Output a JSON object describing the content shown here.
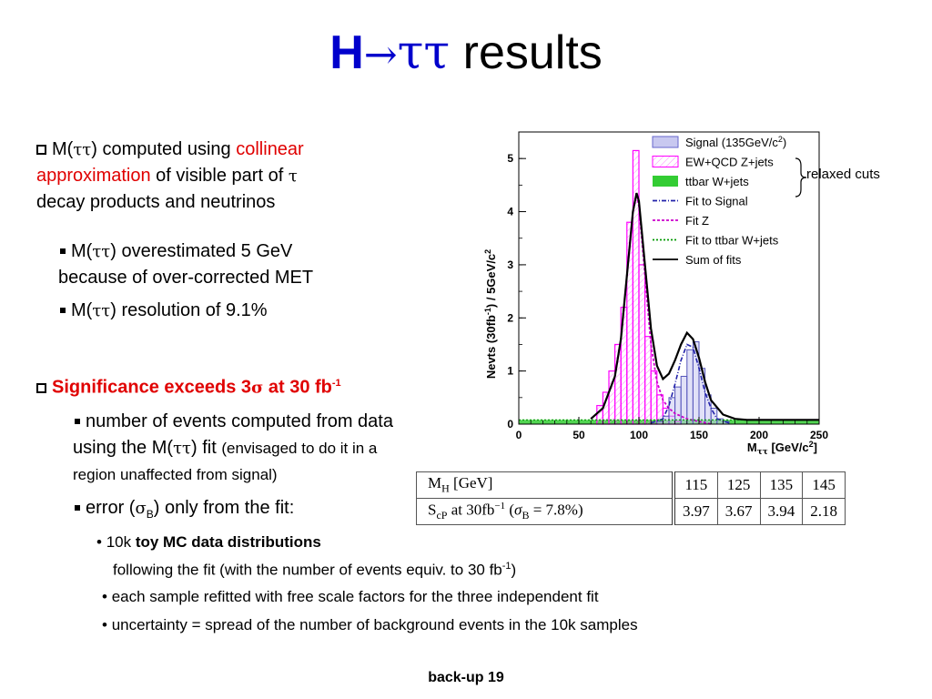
{
  "title": {
    "main_bold": "H",
    "arrow": "→",
    "taus": "ττ",
    "rest": " results"
  },
  "bullets": {
    "b1": {
      "l1_pre": "M(",
      "l1_tau": "ττ",
      "l1_mid": ") computed using ",
      "l1_red": "collinear",
      "l2_red": "approximation",
      "l2_mid": " of visible part of ",
      "l2_tau": "τ",
      "l3": "decay products and neutrinos"
    },
    "b1a": {
      "l1_pre": "M(",
      "l1_tau": "ττ",
      "l1_post": ") overestimated 5 GeV",
      "l2": "because of over-corrected MET"
    },
    "b1b": {
      "pre": "M(",
      "tau": "ττ",
      "post": ") resolution of 9.1%"
    },
    "b2": {
      "pre": "Significance exceeds 3",
      "sigma": "σ",
      "post": " at 30 fb",
      "sup": "-1"
    },
    "b2a": {
      "l1": "number of events computed from data",
      "l2_pre": "using the M(",
      "l2_tau": "ττ",
      "l2_post": ") fit ",
      "l2_small": "(envisaged to do it in a",
      "l3_small": "region unaffected from signal)"
    },
    "b2b": {
      "pre": "error (",
      "sigma": "σ",
      "sub": "B",
      "post": ") only from the fit:"
    },
    "b2c": {
      "l1_pre": "10k ",
      "l1_bold": "toy MC data distributions",
      "l2": "following the fit (with the number of events equiv. to 30 fb",
      "l2_sup": "-1",
      "l2_post": ")"
    },
    "b2d": "each sample refitted with free scale factors for the three independent fit",
    "b2e": "uncertainty = spread of the number of background events in the 10k samples"
  },
  "chart_data": {
    "type": "line",
    "ylabel_pre": "Nevts (30fb",
    "ylabel_sup": "-1",
    "ylabel_post": ") / 5GeV/c",
    "ylabel_sup2": "2",
    "xlabel_pre": "M",
    "xlabel_sub": "ττ",
    "xlabel_post": " [GeV/c",
    "xlabel_sup": "2",
    "xlabel_end": "]",
    "xlim": [
      0,
      250
    ],
    "ylim": [
      0,
      5.5
    ],
    "xticks": [
      "0",
      "50",
      "100",
      "150",
      "200",
      "250"
    ],
    "yticks": [
      "0",
      "1",
      "2",
      "3",
      "4",
      "5"
    ],
    "legend": [
      {
        "label": "Signal (135GeV/c",
        "sup": "2",
        "post": ")",
        "kind": "box",
        "color": "#6666cc"
      },
      {
        "label": "EW+QCD Z+jets",
        "kind": "box",
        "color": "#ff00ff"
      },
      {
        "label": "ttbar W+jets",
        "kind": "fill",
        "color": "#33cc33"
      },
      {
        "label": "Fit to Signal",
        "kind": "line",
        "color": "#2222aa"
      },
      {
        "label": "Fit Z",
        "kind": "line",
        "color": "#cc00cc"
      },
      {
        "label": "Fit to ttbar W+jets",
        "kind": "line",
        "color": "#009900"
      },
      {
        "label": "Sum of fits",
        "kind": "line",
        "color": "#000000"
      }
    ],
    "annotation": "relaxed cuts",
    "histograms": {
      "bin_width": 5,
      "z_jets": {
        "x": [
          65,
          70,
          75,
          80,
          85,
          90,
          95,
          100,
          105,
          110,
          115,
          120,
          125,
          130
        ],
        "values": [
          0.35,
          0.6,
          1.0,
          1.5,
          2.2,
          3.8,
          5.15,
          3.0,
          1.65,
          1.0,
          0.55,
          0.3,
          0.15,
          0.05
        ]
      },
      "signal": {
        "x": [
          115,
          120,
          125,
          130,
          135,
          140,
          145,
          150,
          155,
          160,
          165,
          170
        ],
        "values": [
          0.05,
          0.15,
          0.5,
          0.7,
          0.9,
          1.4,
          1.55,
          1.05,
          0.55,
          0.3,
          0.1,
          0.05
        ]
      },
      "ttbar": {
        "x": [
          0,
          250
        ],
        "level": 0.08
      }
    },
    "fits": {
      "sum": {
        "x": [
          60,
          70,
          80,
          85,
          90,
          95,
          98,
          100,
          105,
          110,
          115,
          120,
          125,
          130,
          135,
          140,
          145,
          150,
          155,
          160,
          170,
          180,
          190,
          200,
          250
        ],
        "y": [
          0.1,
          0.3,
          0.9,
          1.6,
          2.8,
          4.0,
          4.35,
          4.2,
          3.0,
          1.8,
          1.1,
          0.85,
          0.95,
          1.2,
          1.5,
          1.72,
          1.6,
          1.25,
          0.8,
          0.45,
          0.18,
          0.1,
          0.08,
          0.08,
          0.08
        ]
      },
      "signal": {
        "x": [
          110,
          120,
          125,
          130,
          135,
          140,
          145,
          150,
          155,
          160,
          165,
          175
        ],
        "y": [
          0.02,
          0.1,
          0.35,
          0.75,
          1.2,
          1.5,
          1.45,
          1.05,
          0.6,
          0.3,
          0.1,
          0.02
        ]
      },
      "z": {
        "x": [
          60,
          70,
          80,
          85,
          90,
          95,
          98,
          100,
          105,
          110,
          115,
          120,
          125,
          130,
          140,
          150,
          160
        ],
        "y": [
          0.1,
          0.3,
          0.9,
          1.6,
          2.8,
          4.0,
          4.3,
          4.1,
          2.8,
          1.5,
          0.8,
          0.45,
          0.3,
          0.2,
          0.1,
          0.05,
          0.0
        ]
      }
    }
  },
  "table": {
    "row1": {
      "label_pre": "M",
      "label_sub": "H",
      "label_post": " [GeV]",
      "values": [
        "115",
        "125",
        "135",
        "145"
      ]
    },
    "row2": {
      "label_pre": "S",
      "label_sub": "cP",
      "label_mid": " at 30fb",
      "label_sup": "−1",
      "label_paren_pre": "  (",
      "label_sigma": "σ",
      "label_sigma_sub": "B",
      "label_paren_post": " = 7.8%)",
      "values": [
        "3.97",
        "3.67",
        "3.94",
        "2.18"
      ]
    }
  },
  "footer": "back-up 19"
}
